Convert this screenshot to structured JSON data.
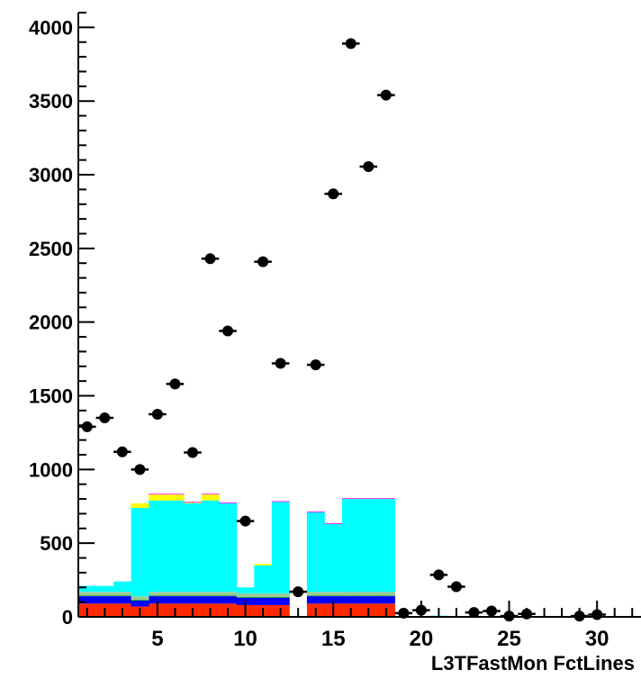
{
  "chart_data": {
    "type": "bar",
    "subtype": "stacked histogram with data points and error bars",
    "xlabel": "L3TFastMon FctLines",
    "ylabel": "",
    "title": "",
    "xlim": [
      0.5,
      32.5
    ],
    "ylim": [
      0,
      4100
    ],
    "x_ticks": [
      5,
      10,
      15,
      20,
      25,
      30
    ],
    "x_tick_labels": [
      "5",
      "10",
      "15",
      "20",
      "25",
      "30"
    ],
    "y_ticks": [
      0,
      500,
      1000,
      1500,
      2000,
      2500,
      3000,
      3500,
      4000
    ],
    "y_tick_labels": [
      "0",
      "500",
      "1000",
      "1500",
      "2000",
      "2500",
      "3000",
      "3500",
      "4000"
    ],
    "grid": false,
    "legend": "none",
    "bins": [
      1,
      2,
      3,
      4,
      5,
      6,
      7,
      8,
      9,
      10,
      11,
      12,
      13,
      14,
      15,
      16,
      17,
      18,
      19,
      20,
      21,
      22,
      23,
      24,
      25,
      26,
      27,
      28,
      29,
      30,
      31,
      32
    ],
    "series": [
      {
        "color": "#ff2a00",
        "values": [
          90,
          90,
          90,
          70,
          90,
          90,
          90,
          90,
          90,
          80,
          80,
          80,
          0,
          90,
          90,
          90,
          90,
          90,
          0,
          0,
          0,
          0,
          0,
          0,
          0,
          0,
          0,
          0,
          0,
          0,
          0,
          0
        ]
      },
      {
        "color": "#0000ff",
        "values": [
          50,
          50,
          50,
          40,
          50,
          50,
          50,
          50,
          50,
          50,
          50,
          50,
          0,
          50,
          50,
          50,
          50,
          50,
          0,
          0,
          0,
          0,
          0,
          0,
          0,
          0,
          0,
          0,
          0,
          0,
          0,
          0
        ]
      },
      {
        "color": "#009900",
        "values": [
          5,
          5,
          5,
          5,
          5,
          5,
          5,
          5,
          5,
          5,
          5,
          5,
          0,
          5,
          5,
          5,
          5,
          5,
          0,
          0,
          0,
          0,
          0,
          0,
          0,
          0,
          0,
          0,
          0,
          0,
          0,
          0
        ]
      },
      {
        "color": "#99cc99",
        "values": [
          25,
          25,
          25,
          25,
          25,
          25,
          25,
          25,
          25,
          25,
          25,
          25,
          0,
          25,
          25,
          25,
          25,
          25,
          0,
          0,
          0,
          0,
          0,
          0,
          0,
          0,
          0,
          0,
          0,
          0,
          0,
          0
        ]
      },
      {
        "color": "#00ffff",
        "values": [
          40,
          40,
          70,
          600,
          620,
          620,
          600,
          620,
          600,
          40,
          190,
          620,
          0,
          540,
          460,
          630,
          630,
          630,
          0,
          0,
          8,
          4,
          1,
          1,
          0,
          0,
          0,
          0,
          0,
          0,
          0,
          0
        ]
      },
      {
        "color": "#ffff00",
        "values": [
          0,
          0,
          0,
          30,
          40,
          40,
          5,
          40,
          0,
          0,
          10,
          0,
          0,
          0,
          0,
          0,
          0,
          0,
          0,
          0,
          0,
          0,
          0,
          0,
          0,
          0,
          0,
          0,
          0,
          0,
          0,
          0
        ]
      },
      {
        "color": "#ff00ff",
        "values": [
          0,
          0,
          0,
          0,
          5,
          5,
          5,
          5,
          5,
          0,
          0,
          5,
          0,
          5,
          5,
          5,
          5,
          5,
          0,
          0,
          0,
          0,
          0,
          0,
          0,
          0,
          0,
          0,
          0,
          0,
          0,
          0
        ]
      }
    ],
    "data_points": {
      "color": "#000000",
      "x": [
        1,
        2,
        3,
        4,
        5,
        6,
        7,
        8,
        9,
        10,
        11,
        12,
        13,
        14,
        15,
        16,
        17,
        18,
        19,
        20,
        21,
        22,
        23,
        24,
        25,
        26,
        29,
        30
      ],
      "y": [
        1290,
        1350,
        1120,
        1000,
        1375,
        1580,
        1115,
        2430,
        1940,
        650,
        2410,
        1720,
        170,
        1710,
        2870,
        3890,
        3055,
        3540,
        25,
        45,
        285,
        205,
        30,
        40,
        5,
        20,
        5,
        15
      ]
    }
  }
}
